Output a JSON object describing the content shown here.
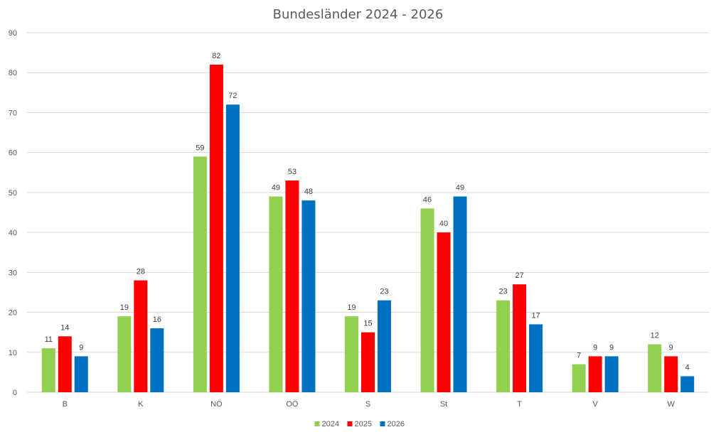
{
  "chart_data": {
    "type": "bar",
    "title": "Bundesländer 2024 - 2026",
    "xlabel": "",
    "ylabel": "",
    "categories": [
      "B",
      "K",
      "NÖ",
      "OÖ",
      "S",
      "St",
      "T",
      "V",
      "W"
    ],
    "series": [
      {
        "name": "2024",
        "color": "#92d050",
        "values": [
          11,
          19,
          59,
          49,
          19,
          46,
          23,
          7,
          12
        ]
      },
      {
        "name": "2025",
        "color": "#ff0000",
        "values": [
          14,
          28,
          82,
          53,
          15,
          40,
          27,
          9,
          9
        ]
      },
      {
        "name": "2026",
        "color": "#0070c0",
        "values": [
          9,
          16,
          72,
          48,
          23,
          49,
          17,
          9,
          4
        ]
      }
    ],
    "ylim": [
      0,
      90
    ],
    "yticks": [
      0,
      10,
      20,
      30,
      40,
      50,
      60,
      70,
      80,
      90
    ],
    "grid": true,
    "legend_position": "bottom",
    "data_labels": true
  }
}
